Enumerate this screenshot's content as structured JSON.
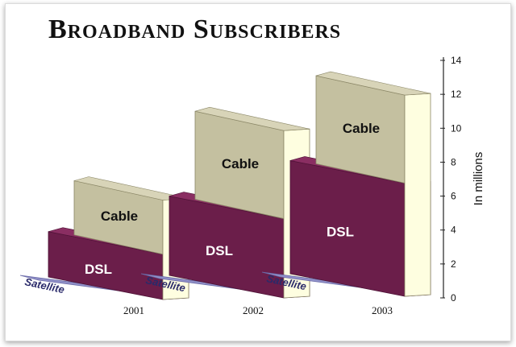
{
  "chart_data": {
    "type": "bar",
    "title": "Broadband Subscribers",
    "ylabel": "In millions",
    "xlabel": "",
    "ylim": [
      0,
      14
    ],
    "yticks": [
      0,
      2,
      4,
      6,
      8,
      10,
      12,
      14
    ],
    "stacked": true,
    "three_d": true,
    "grid": false,
    "categories": [
      "2001",
      "2002",
      "2003"
    ],
    "series": [
      {
        "name": "Satellite",
        "values": [
          0.2,
          0.3,
          0.4
        ]
      },
      {
        "name": "DSL",
        "values": [
          3.8,
          5.7,
          7.6
        ]
      },
      {
        "name": "Cable",
        "values": [
          3.0,
          5.0,
          5.0
        ]
      }
    ],
    "colors": {
      "satellite_front": "#9090c8",
      "dsl_front": "#6b1e4a",
      "dsl_top": "#8a2e62",
      "dsl_side": "#a03268",
      "cable_front": "#c4c0a0",
      "cable_top": "#d8d4b8",
      "cable_side": "#fefee0"
    }
  }
}
